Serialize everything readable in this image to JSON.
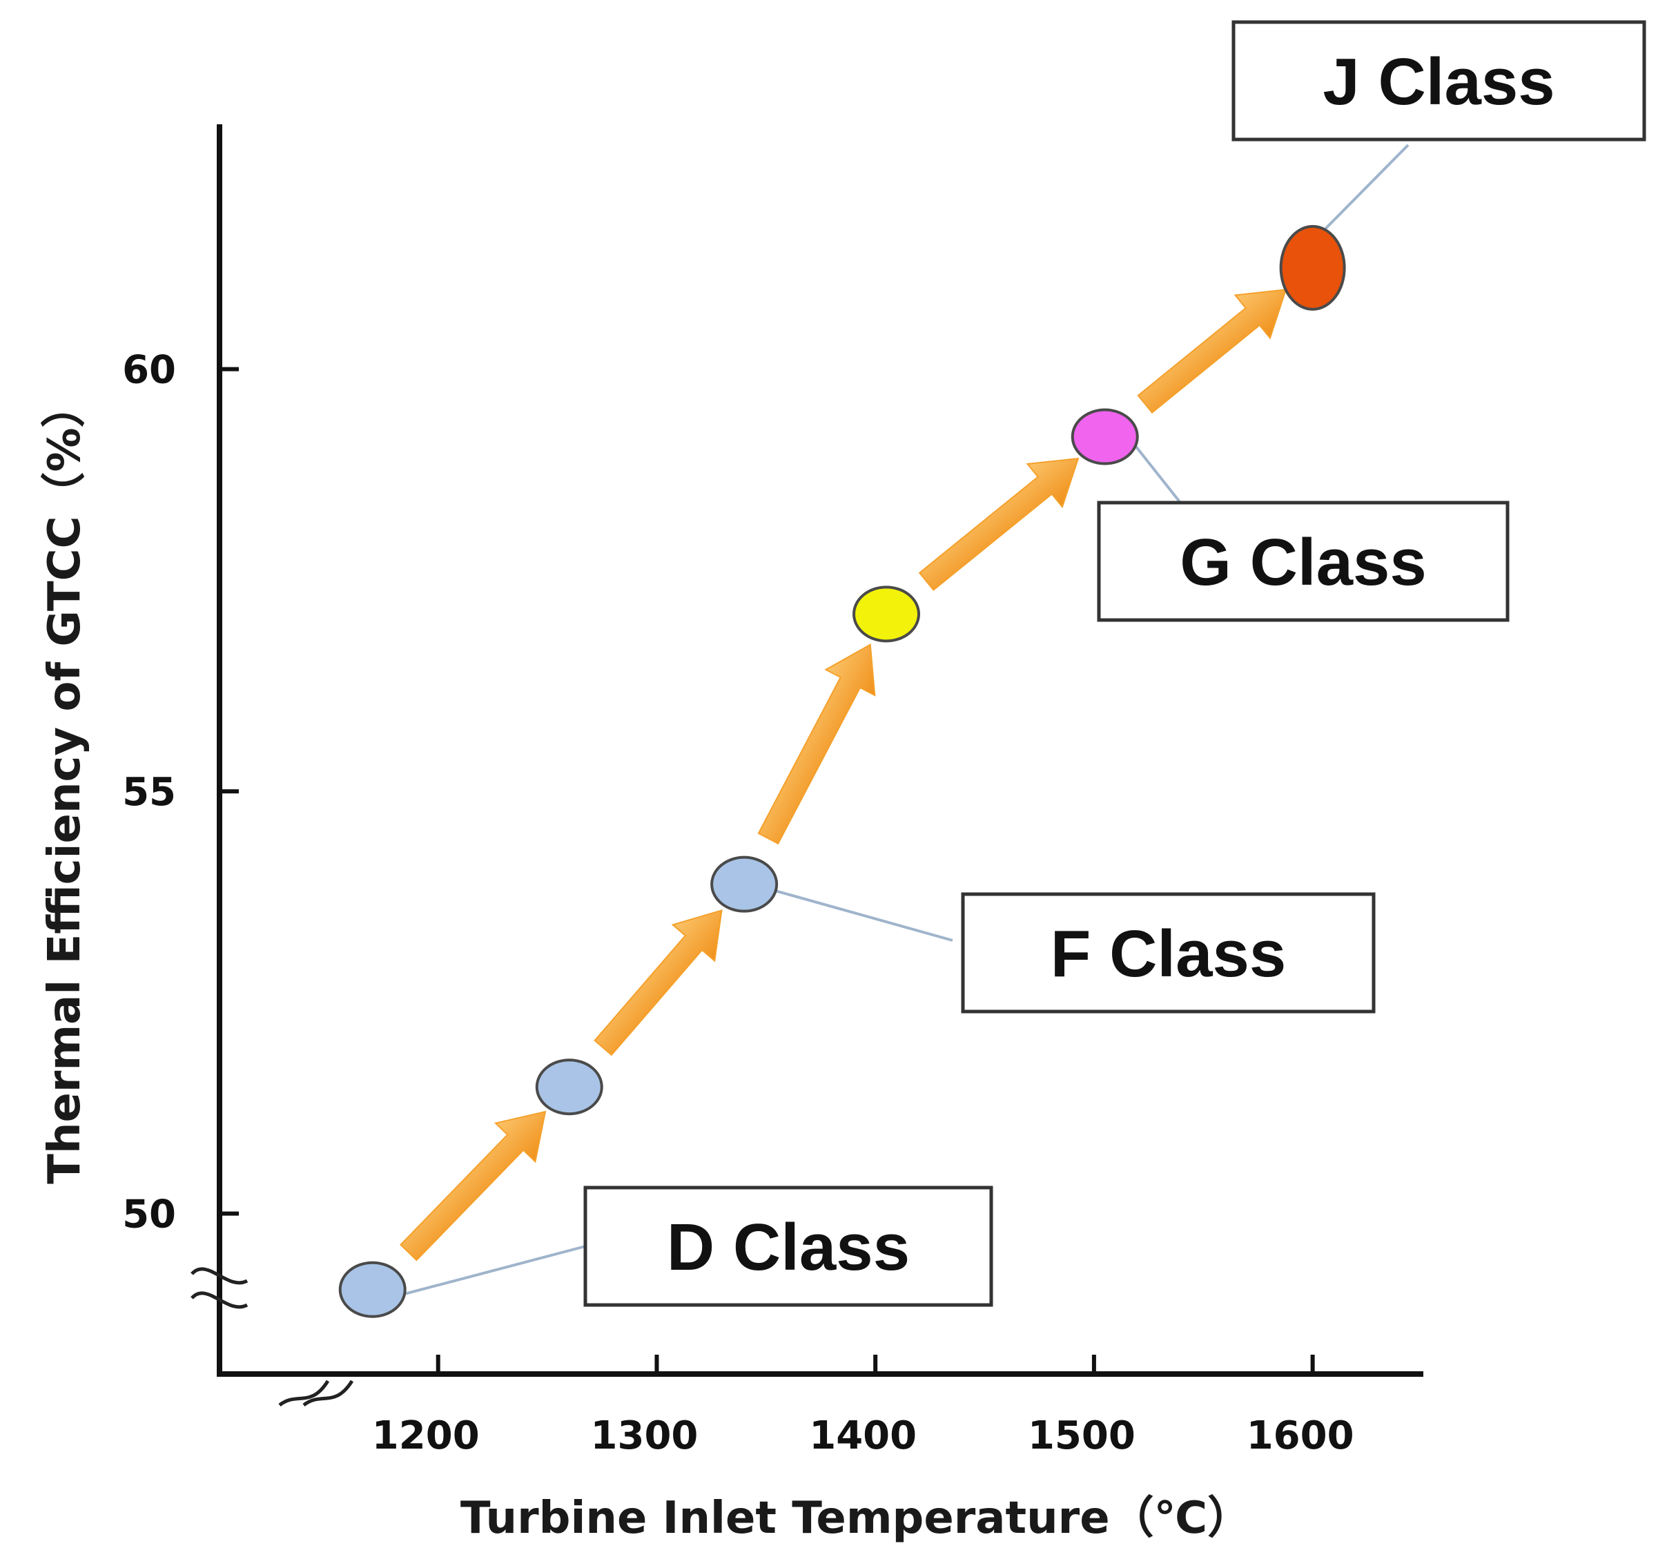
{
  "chart_data": {
    "type": "scatter",
    "xlabel": "Turbine Inlet Temperature（℃）",
    "ylabel": "Thermal Efficiency of  GTCC（%）",
    "x_ticks": [
      1200,
      1300,
      1400,
      1500,
      1600
    ],
    "y_ticks": [
      50,
      55,
      60
    ],
    "xlim": [
      1100,
      1650
    ],
    "ylim": [
      48.1,
      62.9
    ],
    "axis_breaks": [
      "x",
      "y"
    ],
    "grid": false,
    "points": [
      {
        "x": 1170,
        "y": 49.1,
        "color": "#a9c4e6"
      },
      {
        "x": 1260,
        "y": 51.5,
        "color": "#a9c4e6"
      },
      {
        "x": 1340,
        "y": 53.9,
        "color": "#a9c4e6"
      },
      {
        "x": 1405,
        "y": 57.1,
        "color": "#f2f20a"
      },
      {
        "x": 1505,
        "y": 59.2,
        "color": "#f064ee"
      },
      {
        "x": 1600,
        "y": 61.2,
        "color": "#e8520a"
      }
    ],
    "annotations": [
      {
        "label": "D Class",
        "point_index": 0
      },
      {
        "label": "F Class",
        "point_index": 2
      },
      {
        "label": "G Class",
        "point_index": 4
      },
      {
        "label": "J Class",
        "point_index": 5
      }
    ],
    "arrow_color": "#f5a02a",
    "leader_color": "#9fb4cc"
  }
}
